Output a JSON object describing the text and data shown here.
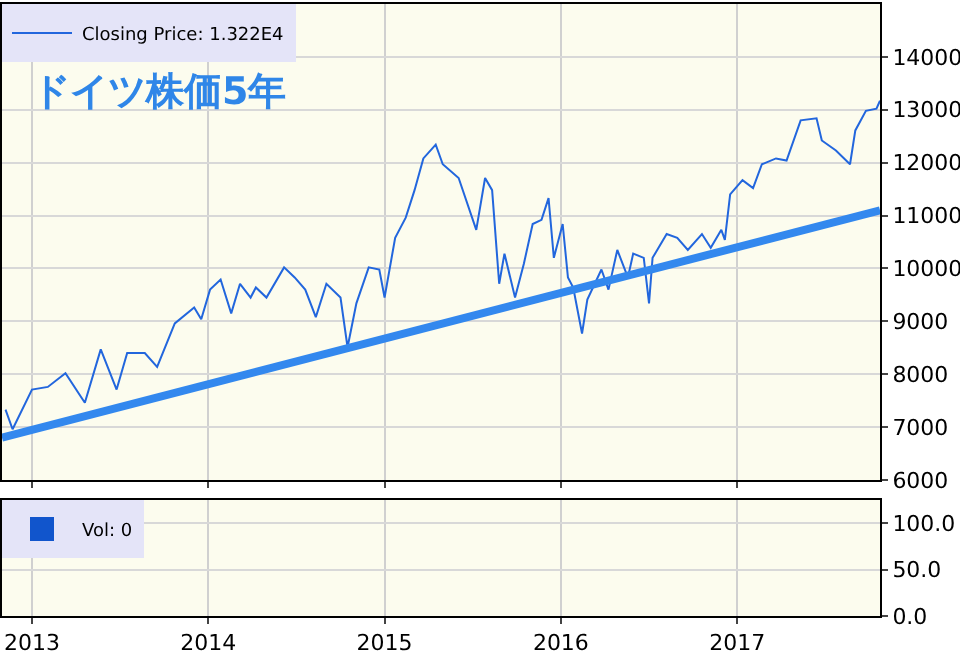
{
  "chart_data": [
    {
      "type": "line",
      "title": "ドイツ株価5年",
      "legend": "top left",
      "grid": true,
      "tick_labels": "y",
      "xlim": [
        2012.83,
        2017.81
      ],
      "xticks": [
        {
          "value": 2013,
          "label": null
        },
        {
          "value": 2014,
          "label": null
        },
        {
          "value": 2015,
          "label": null
        },
        {
          "value": 2016,
          "label": null
        },
        {
          "value": 2017,
          "label": null
        }
      ],
      "ylim": [
        6000,
        15000
      ],
      "yticks": [
        6000,
        7000,
        8000,
        9000,
        10000,
        11000,
        12000,
        13000,
        14000
      ],
      "series": [
        {
          "name": "Closing Price: 1.322E4",
          "color": "#2266dd",
          "x": [
            2012.85,
            2012.89,
            2013.0,
            2013.09,
            2013.19,
            2013.3,
            2013.39,
            2013.48,
            2013.54,
            2013.64,
            2013.71,
            2013.81,
            2013.92,
            2013.96,
            2014.01,
            2014.07,
            2014.13,
            2014.18,
            2014.24,
            2014.27,
            2014.33,
            2014.43,
            2014.49,
            2014.55,
            2014.61,
            2014.67,
            2014.75,
            2014.79,
            2014.84,
            2014.91,
            2014.97,
            2015.0,
            2015.06,
            2015.12,
            2015.17,
            2015.22,
            2015.29,
            2015.33,
            2015.42,
            2015.52,
            2015.57,
            2015.61,
            2015.65,
            2015.68,
            2015.74,
            2015.79,
            2015.84,
            2015.89,
            2015.93,
            2015.96,
            2016.01,
            2016.04,
            2016.07,
            2016.12,
            2016.15,
            2016.23,
            2016.27,
            2016.32,
            2016.38,
            2016.41,
            2016.47,
            2016.5,
            2016.52,
            2016.6,
            2016.66,
            2016.72,
            2016.8,
            2016.85,
            2016.91,
            2016.93,
            2016.96,
            2017.03,
            2017.09,
            2017.14,
            2017.22,
            2017.28,
            2017.36,
            2017.45,
            2017.48,
            2017.56,
            2017.64,
            2017.67,
            2017.73,
            2017.79,
            2017.81
          ],
          "values": [
            7330,
            6960,
            7710,
            7760,
            8020,
            7460,
            8470,
            7710,
            8400,
            8400,
            8140,
            8960,
            9260,
            9040,
            9600,
            9790,
            9150,
            9710,
            9450,
            9640,
            9450,
            10020,
            9830,
            9600,
            9080,
            9710,
            9450,
            8510,
            9340,
            10020,
            9980,
            9450,
            10580,
            10960,
            11480,
            12080,
            12340,
            11970,
            11710,
            10730,
            11710,
            11480,
            9710,
            10280,
            9450,
            10090,
            10840,
            10920,
            11330,
            10200,
            10840,
            9830,
            9640,
            8770,
            9410,
            9980,
            9600,
            10350,
            9830,
            10280,
            10200,
            9340,
            10200,
            10650,
            10580,
            10350,
            10650,
            10390,
            10730,
            10540,
            11400,
            11670,
            11520,
            11970,
            12080,
            12040,
            12800,
            12840,
            12420,
            12230,
            11970,
            12610,
            12980,
            13020,
            13170
          ]
        },
        {
          "type": "line",
          "color": "#3388ee",
          "x": [
            2012.83,
            2017.81
          ],
          "values": [
            6800,
            11100
          ]
        }
      ]
    },
    {
      "type": "bar",
      "legend": "top left",
      "grid": true,
      "xlim": [
        2012.83,
        2017.81
      ],
      "xticks": [
        2013,
        2014,
        2015,
        2016,
        2017
      ],
      "ylim": [
        0,
        125
      ],
      "yticks": [
        {
          "value": 0,
          "label": "0.0"
        },
        {
          "value": 50,
          "label": "50.0"
        },
        {
          "value": 100,
          "label": "100.0"
        }
      ],
      "series": [
        {
          "name": "Vol: 0",
          "color": "#1155cc",
          "x": [
            2013,
            2014,
            2015,
            2016,
            2017
          ],
          "values": [
            0,
            0,
            0,
            0,
            0
          ]
        }
      ]
    }
  ]
}
